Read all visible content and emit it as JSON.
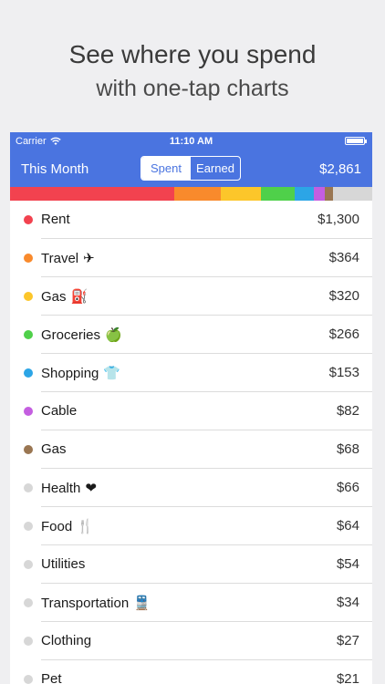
{
  "promo": {
    "headline": "See where you spend",
    "subheadline": "with one-tap charts"
  },
  "status_bar": {
    "carrier": "Carrier",
    "time": "11:10 AM"
  },
  "nav": {
    "title": "This Month",
    "segments": [
      "Spent",
      "Earned"
    ],
    "active_segment": "Spent",
    "total": "$2,861"
  },
  "spend_bar": [
    {
      "color": "#f2424f",
      "value": 1300
    },
    {
      "color": "#f98a2c",
      "value": 364
    },
    {
      "color": "#fcc62a",
      "value": 320
    },
    {
      "color": "#4fd04a",
      "value": 266
    },
    {
      "color": "#2ca5e6",
      "value": 153
    },
    {
      "color": "#c45ee0",
      "value": 82
    },
    {
      "color": "#9a7652",
      "value": 68
    },
    {
      "color": "#d7d7d7",
      "value": 308
    }
  ],
  "categories": [
    {
      "name": "Rent",
      "emoji": "",
      "amount": "$1,300",
      "color": "#f2424f"
    },
    {
      "name": "Travel",
      "emoji": "✈",
      "amount": "$364",
      "color": "#f98a2c"
    },
    {
      "name": "Gas",
      "emoji": "⛽",
      "amount": "$320",
      "color": "#fcc62a"
    },
    {
      "name": "Groceries",
      "emoji": "🍏",
      "amount": "$266",
      "color": "#4fd04a"
    },
    {
      "name": "Shopping",
      "emoji": "👕",
      "amount": "$153",
      "color": "#2ca5e6"
    },
    {
      "name": "Cable",
      "emoji": "",
      "amount": "$82",
      "color": "#c45ee0"
    },
    {
      "name": "Gas",
      "emoji": "",
      "amount": "$68",
      "color": "#9a7652"
    },
    {
      "name": "Health",
      "emoji": "❤",
      "amount": "$66",
      "color": "#d7d7d7"
    },
    {
      "name": "Food",
      "emoji": "🍴",
      "amount": "$64",
      "color": "#d7d7d7"
    },
    {
      "name": "Utilities",
      "emoji": "",
      "amount": "$54",
      "color": "#d7d7d7"
    },
    {
      "name": "Transportation",
      "emoji": "🚆",
      "amount": "$34",
      "color": "#d7d7d7"
    },
    {
      "name": "Clothing",
      "emoji": "",
      "amount": "$27",
      "color": "#d7d7d7"
    },
    {
      "name": "Pet",
      "emoji": "",
      "amount": "$21",
      "color": "#d7d7d7"
    }
  ]
}
